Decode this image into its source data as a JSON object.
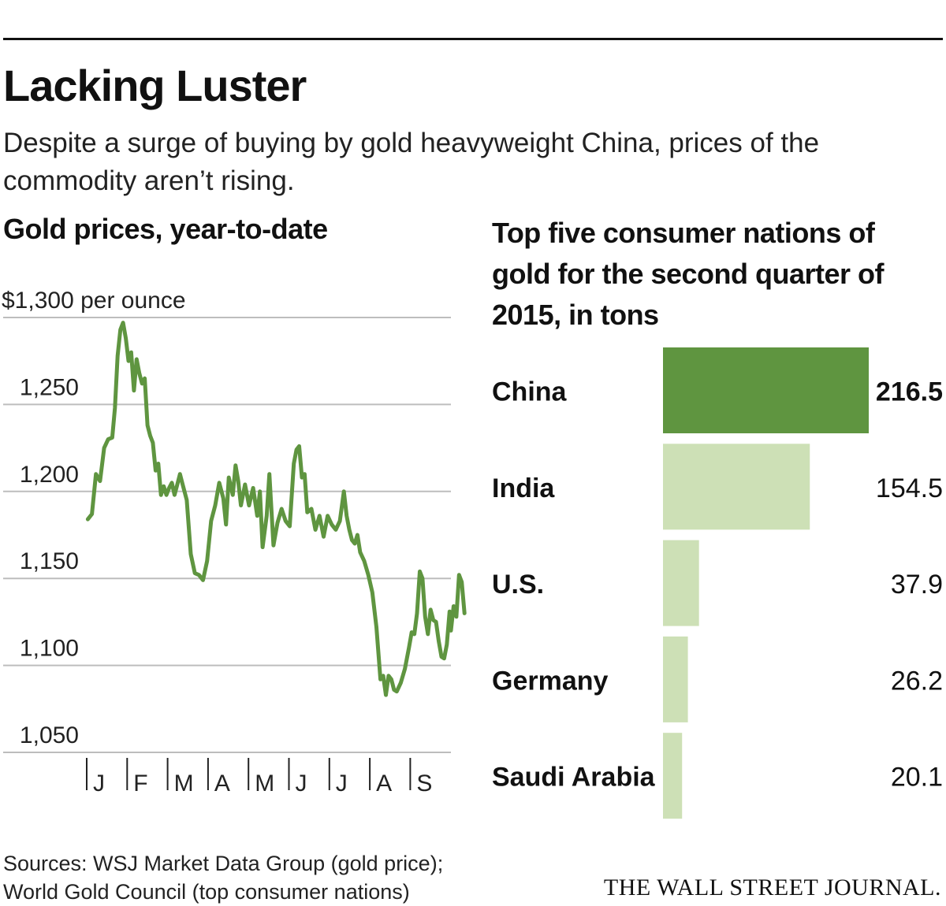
{
  "header": {
    "title": "Lacking Luster",
    "subtitle": "Despite a surge of buying by gold heavyweight China, prices of the commodity aren’t rising."
  },
  "footer": {
    "sources_line1": "Sources: WSJ Market Data Group (gold price);",
    "sources_line2": "World Gold Council (top consumer nations)",
    "logo": "THE WALL STREET JOURNAL."
  },
  "colors": {
    "line": "#5f9540",
    "bar_highlight": "#5f9540",
    "bar_light": "#cde0b6",
    "grid": "#bdbdbd",
    "text": "#111111"
  },
  "chart_data": [
    {
      "type": "line",
      "title": "Gold prices, year-to-date",
      "ylabel": "$1,300 per ounce",
      "ylim": [
        1050,
        1300
      ],
      "yticks": [
        1300,
        1250,
        1200,
        1150,
        1100,
        1050
      ],
      "ytick_labels": [
        "$1,300 per ounce",
        "1,250",
        "1,200",
        "1,150",
        "1,100",
        "1,050"
      ],
      "x_months": [
        "J",
        "F",
        "M",
        "A",
        "M",
        "J",
        "J",
        "A",
        "S"
      ],
      "xlim": [
        0,
        270
      ],
      "grid": true,
      "series": [
        {
          "name": "Gold price",
          "points": [
            [
              2,
              1184
            ],
            [
              5,
              1187
            ],
            [
              8,
              1210
            ],
            [
              11,
              1206
            ],
            [
              14,
              1225
            ],
            [
              17,
              1230
            ],
            [
              20,
              1231
            ],
            [
              22,
              1248
            ],
            [
              24,
              1278
            ],
            [
              26,
              1293
            ],
            [
              28,
              1297
            ],
            [
              30,
              1288
            ],
            [
              32,
              1275
            ],
            [
              34,
              1280
            ],
            [
              36,
              1258
            ],
            [
              38,
              1276
            ],
            [
              40,
              1268
            ],
            [
              42,
              1262
            ],
            [
              44,
              1265
            ],
            [
              46,
              1238
            ],
            [
              48,
              1232
            ],
            [
              50,
              1228
            ],
            [
              52,
              1212
            ],
            [
              54,
              1216
            ],
            [
              56,
              1198
            ],
            [
              58,
              1203
            ],
            [
              60,
              1198
            ],
            [
              62,
              1202
            ],
            [
              64,
              1205
            ],
            [
              66,
              1198
            ],
            [
              68,
              1204
            ],
            [
              70,
              1210
            ],
            [
              72,
              1204
            ],
            [
              75,
              1195
            ],
            [
              78,
              1164
            ],
            [
              81,
              1153
            ],
            [
              84,
              1152
            ],
            [
              87,
              1149
            ],
            [
              90,
              1160
            ],
            [
              93,
              1183
            ],
            [
              96,
              1192
            ],
            [
              99,
              1205
            ],
            [
              102,
              1196
            ],
            [
              104,
              1181
            ],
            [
              106,
              1208
            ],
            [
              109,
              1198
            ],
            [
              111,
              1215
            ],
            [
              113,
              1206
            ],
            [
              115,
              1192
            ],
            [
              118,
              1204
            ],
            [
              121,
              1192
            ],
            [
              124,
              1202
            ],
            [
              127,
              1186
            ],
            [
              129,
              1200
            ],
            [
              131,
              1168
            ],
            [
              134,
              1186
            ],
            [
              136,
              1210
            ],
            [
              139,
              1169
            ],
            [
              142,
              1182
            ],
            [
              145,
              1190
            ],
            [
              148,
              1183
            ],
            [
              151,
              1180
            ],
            [
              154,
              1216
            ],
            [
              156,
              1224
            ],
            [
              158,
              1226
            ],
            [
              160,
              1208
            ],
            [
              162,
              1210
            ],
            [
              164,
              1188
            ],
            [
              167,
              1190
            ],
            [
              170,
              1178
            ],
            [
              173,
              1186
            ],
            [
              176,
              1174
            ],
            [
              179,
              1186
            ],
            [
              182,
              1181
            ],
            [
              185,
              1178
            ],
            [
              188,
              1183
            ],
            [
              191,
              1200
            ],
            [
              193,
              1186
            ],
            [
              195,
              1178
            ],
            [
              197,
              1172
            ],
            [
              199,
              1170
            ],
            [
              201,
              1175
            ],
            [
              203,
              1165
            ],
            [
              206,
              1160
            ],
            [
              209,
              1152
            ],
            [
              212,
              1142
            ],
            [
              215,
              1122
            ],
            [
              218,
              1092
            ],
            [
              220,
              1094
            ],
            [
              222,
              1083
            ],
            [
              224,
              1094
            ],
            [
              226,
              1092
            ],
            [
              228,
              1086
            ],
            [
              230,
              1085
            ],
            [
              233,
              1090
            ],
            [
              236,
              1098
            ],
            [
              239,
              1110
            ],
            [
              241,
              1119
            ],
            [
              243,
              1118
            ],
            [
              245,
              1130
            ],
            [
              247,
              1154
            ],
            [
              249,
              1150
            ],
            [
              251,
              1128
            ],
            [
              253,
              1118
            ],
            [
              255,
              1132
            ],
            [
              257,
              1126
            ],
            [
              259,
              1125
            ],
            [
              261,
              1114
            ],
            [
              263,
              1105
            ],
            [
              265,
              1104
            ],
            [
              267,
              1112
            ],
            [
              269,
              1131
            ],
            [
              270,
              1120
            ],
            [
              272,
              1134
            ],
            [
              274,
              1128
            ],
            [
              276,
              1152
            ],
            [
              278,
              1148
            ],
            [
              280,
              1130
            ]
          ]
        }
      ]
    },
    {
      "type": "bar",
      "title": "Top five consumer nations of gold for the second quarter of 2015, in tons",
      "categories": [
        "China",
        "India",
        "U.S.",
        "Germany",
        "Saudi Arabia"
      ],
      "values": [
        216.5,
        154.5,
        37.9,
        26.2,
        20.1
      ],
      "value_labels": [
        "216.5",
        "154.5",
        "37.9",
        "26.2",
        "20.1"
      ],
      "highlight": "China",
      "xlim": [
        0,
        216.5
      ]
    }
  ]
}
